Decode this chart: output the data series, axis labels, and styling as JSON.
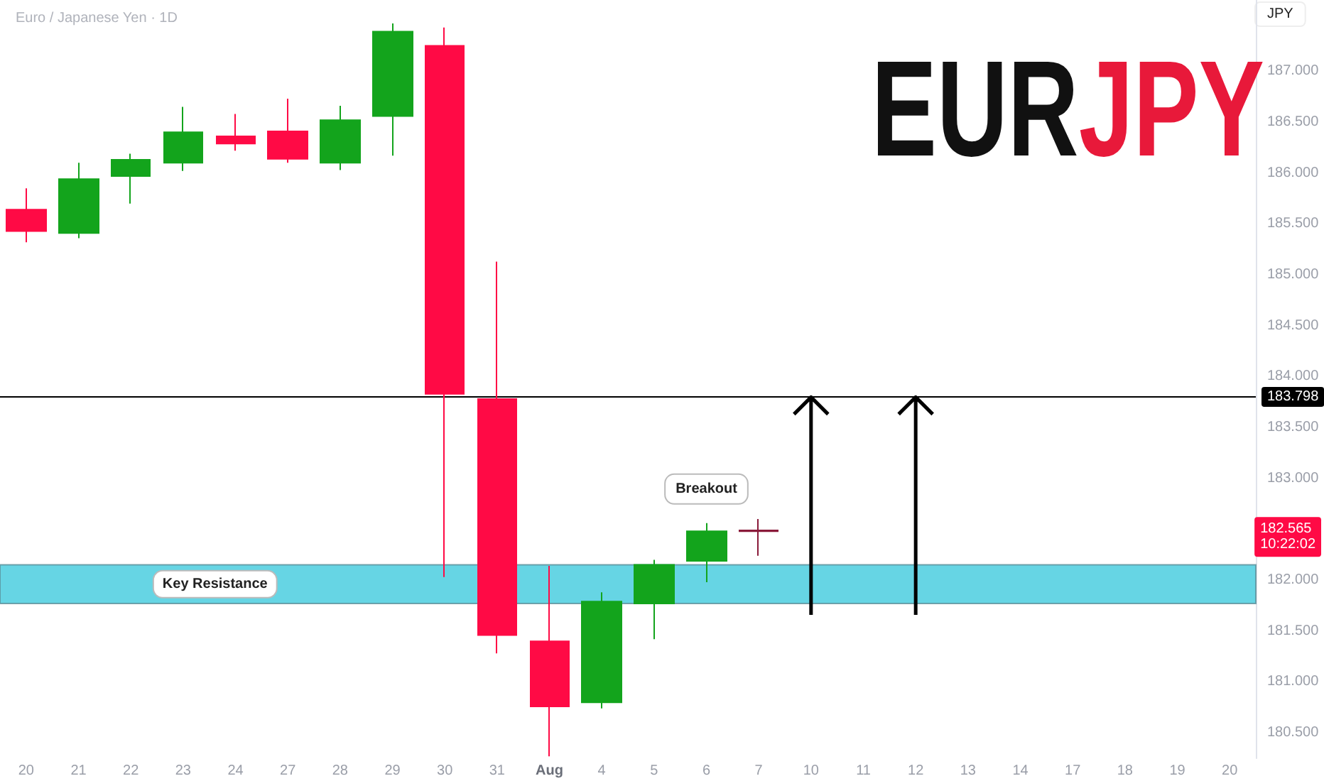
{
  "chart_data": {
    "type": "candlestick",
    "title": "Euro / Japanese Yen · 1D",
    "subtitle": "EURJPY",
    "ylabel": "JPY",
    "categories": [
      "20",
      "21",
      "22",
      "23",
      "24",
      "27",
      "28",
      "29",
      "30",
      "31",
      "Aug",
      "4",
      "5",
      "6",
      "7",
      "10",
      "11",
      "12",
      "13",
      "14",
      "17",
      "18",
      "19",
      "20"
    ],
    "ohlc": [
      [
        185.64,
        185.85,
        185.32,
        185.43
      ],
      [
        185.41,
        186.1,
        185.36,
        185.94
      ],
      [
        185.97,
        186.19,
        185.7,
        186.13
      ],
      [
        186.1,
        186.65,
        186.02,
        186.4
      ],
      [
        186.36,
        186.58,
        186.22,
        186.29
      ],
      [
        186.41,
        186.73,
        186.1,
        186.14
      ],
      [
        186.1,
        186.66,
        186.03,
        186.52
      ],
      [
        186.56,
        187.47,
        186.17,
        187.39
      ],
      [
        187.25,
        187.43,
        182.03,
        183.83
      ],
      [
        183.78,
        185.13,
        181.28,
        181.46
      ],
      [
        181.4,
        182.14,
        180.27,
        180.76
      ],
      [
        180.8,
        181.88,
        180.74,
        181.79
      ],
      [
        181.77,
        182.2,
        181.42,
        182.15
      ],
      [
        182.19,
        182.56,
        181.98,
        182.48
      ],
      [
        182.49,
        182.6,
        182.24,
        182.48
      ],
      null,
      null,
      null,
      null,
      null,
      null,
      null,
      null,
      null
    ],
    "colors": [
      "#ff0a45",
      "#13a41c",
      "#13a41c",
      "#13a41c",
      "#ff0a45",
      "#ff0a45",
      "#13a41c",
      "#13a41c",
      "#ff0a45",
      "#ff0a45",
      "#ff0a45",
      "#13a41c",
      "#13a41c",
      "#13a41c",
      "#8a1a3a",
      null,
      null,
      null,
      null,
      null,
      null,
      null,
      null,
      null
    ],
    "ylim": [
      180.25,
      187.7
    ],
    "yticks": [
      {
        "value": 180.5,
        "label": "180.500"
      },
      {
        "value": 181,
        "label": "181.000"
      },
      {
        "value": 181.5,
        "label": "181.500"
      },
      {
        "value": 182,
        "label": "182.000"
      },
      {
        "value": 183,
        "label": "183.000"
      },
      {
        "value": 183.5,
        "label": "183.500"
      },
      {
        "value": 184,
        "label": "184.000"
      },
      {
        "value": 184.5,
        "label": "184.500"
      },
      {
        "value": 185,
        "label": "185.000"
      },
      {
        "value": 185.5,
        "label": "185.500"
      },
      {
        "value": 186,
        "label": "186.000"
      },
      {
        "value": 186.5,
        "label": "186.500"
      },
      {
        "value": 187,
        "label": "187.000"
      }
    ],
    "bands": [
      {
        "axis": "y",
        "from": 181.77,
        "to": 182.15,
        "label": "Key Resistance",
        "color": "#40cbdd"
      }
    ],
    "ref_lines": [
      {
        "axis": "y",
        "value": 183.798,
        "label": "183.798",
        "color": "#000000"
      }
    ],
    "annotations": [
      {
        "text": "Breakout",
        "x": "6",
        "y": 182.56
      },
      "182.565\n10:22:02"
    ],
    "grid": false
  }
}
